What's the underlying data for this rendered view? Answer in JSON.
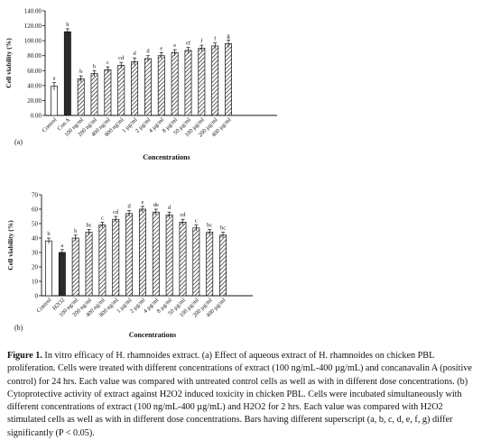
{
  "chart_data": [
    {
      "type": "bar",
      "panel_label": "(a)",
      "ylabel": "Cell viability (%)",
      "xlabel": "Concentrations",
      "ylim": [
        0,
        140
      ],
      "yticks": [
        "0.00",
        "20.00",
        "40.00",
        "60.00",
        "80.00",
        "100.00",
        "120.00",
        "140.00"
      ],
      "ytick_values": [
        0,
        20,
        40,
        60,
        80,
        100,
        120,
        140
      ],
      "categories": [
        "Control",
        "Con A",
        "100 ng/ml",
        "200 ng/ml",
        "400 ng/ml",
        "800 ng/ml",
        "1 µg/ml",
        "2 µg/ml",
        "4 µg/ml",
        "8 µg/ml",
        "50 µg/ml",
        "100 µg/ml",
        "200 µg/ml",
        "400 µg/ml"
      ],
      "values": [
        39,
        112,
        49,
        56,
        61,
        67,
        72,
        76,
        80,
        84,
        87,
        90,
        93,
        96
      ],
      "errors": [
        5,
        4,
        4,
        4,
        4,
        4,
        5,
        4,
        4,
        4,
        4,
        4,
        4,
        5
      ],
      "superscripts": [
        "a",
        "h",
        "b",
        "b",
        "c",
        "cd",
        "d",
        "d",
        "e",
        "e",
        "ef",
        "f",
        "f",
        "g"
      ],
      "fills": [
        "white",
        "solid",
        "hatch",
        "hatch",
        "hatch",
        "hatch",
        "hatch",
        "hatch",
        "hatch",
        "hatch",
        "hatch",
        "hatch",
        "hatch",
        "hatch"
      ],
      "grid": false
    },
    {
      "type": "bar",
      "panel_label": "(b)",
      "ylabel": "Cell viability (%)",
      "xlabel": "Concentrations",
      "ylim": [
        0,
        70
      ],
      "yticks": [
        "0",
        "10",
        "20",
        "30",
        "40",
        "50",
        "60",
        "70"
      ],
      "ytick_values": [
        0,
        10,
        20,
        30,
        40,
        50,
        60,
        70
      ],
      "categories": [
        "Control",
        "H2O2",
        "100 ng/ml",
        "200 ng/ml",
        "400 ng/ml",
        "800 ng/ml",
        "1 µg/ml",
        "2 µg/ml",
        "4 µg/ml",
        "8 µg/ml",
        "50 µg/ml",
        "100 µg/ml",
        "200 µg/ml",
        "400 µg/ml"
      ],
      "values": [
        38,
        30,
        40,
        44,
        49,
        53,
        57,
        60,
        58,
        56,
        51,
        47,
        44,
        42
      ],
      "errors": [
        2,
        2,
        2,
        2,
        2,
        2,
        2,
        2,
        2,
        2,
        2,
        2,
        2,
        2
      ],
      "superscripts": [
        "b",
        "a",
        "b",
        "bc",
        "c",
        "cd",
        "d",
        "e",
        "de",
        "d",
        "cd",
        "c",
        "bc",
        "bc"
      ],
      "fills": [
        "white",
        "solid",
        "hatch",
        "hatch",
        "hatch",
        "hatch",
        "hatch",
        "hatch",
        "hatch",
        "hatch",
        "hatch",
        "hatch",
        "hatch",
        "hatch"
      ],
      "grid": false
    }
  ],
  "caption": {
    "label": "Figure 1.",
    "text": "In vitro efficacy of H. rhamnoides extract. (a) Effect of aqueous extract of H. rhamnoides on chicken PBL proliferation. Cells were treated with different concentrations of extract (100 ng/mL-400 µg/mL) and concanavalin A (positive control) for 24 hrs. Each value was compared with untreated control cells as well as with in different dose concentrations. (b) Cytoprotective activity of extract against H2O2 induced toxicity in chicken PBL. Cells were incubated simultaneously with different concentrations of extract (100 ng/mL-400 µg/mL) and H2O2 for 2 hrs. Each value was compared with H2O2 stimulated cells as well as with in different dose concentrations. Bars having different superscript (a, b, c, d, e, f, g) differ significantly (P < 0.05)."
  },
  "colors": {
    "ink": "#111111",
    "solid_bar": "#2b2b2b",
    "hatch_line": "#333333",
    "background": "#ffffff"
  }
}
